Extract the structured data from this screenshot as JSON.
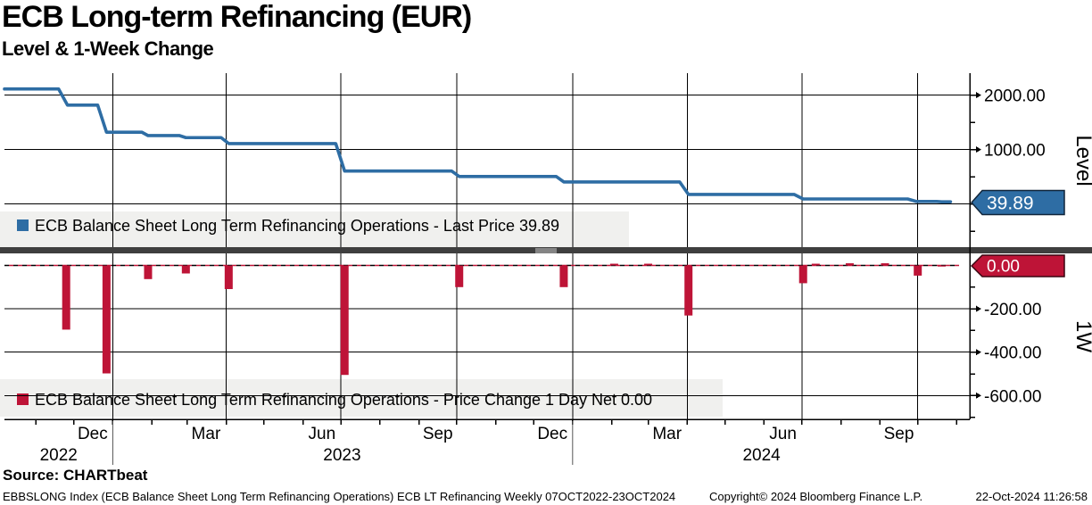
{
  "window": {
    "title": "ECB Long-term Refinancing (EUR)",
    "subtitle": "Level & 1-Week Change"
  },
  "source_label": "Source: CHARTbeat",
  "footer": {
    "left": "EBBSLONG Index (ECB Balance Sheet Long Term Refinancing Operations) ECB LT Refinancing  Weekly 07OCT2022-23OCT2024",
    "center": "Copyright© 2024 Bloomberg Finance L.P.",
    "right": "22-Oct-2024 11:26:58"
  },
  "colors": {
    "level_line": "#2e6da4",
    "level_tag_bg": "#2e6da4",
    "change_bar": "#be1437",
    "change_tag_bg": "#be1437",
    "grid": "#000000",
    "legend_bg": "#f0f0ee",
    "divider": "#3f3f3f"
  },
  "chart_data": [
    {
      "type": "line",
      "panel": "top",
      "series_name": "ECB Balance Sheet Long Term Refinancing Operations",
      "legend": "ECB Balance Sheet Long Term Refinancing Operations - Last Price 39.89",
      "axis_label": "Level",
      "last_value": 39.89,
      "last_value_label": "39.89",
      "ylim": [
        -790,
        2400
      ],
      "y_ticks": [
        {
          "value": 2000,
          "label": "2000.00"
        },
        {
          "value": 1000,
          "label": "1000.00"
        }
      ],
      "y_minor_ticks": [
        1500,
        500,
        0,
        -500
      ],
      "points": [
        [
          0,
          2113
        ],
        [
          43,
          2113
        ],
        [
          50,
          1817
        ],
        [
          74,
          1817
        ],
        [
          81,
          1319
        ],
        [
          109,
          1319
        ],
        [
          114,
          1256
        ],
        [
          139,
          1256
        ],
        [
          144,
          1219
        ],
        [
          172,
          1219
        ],
        [
          178,
          1110
        ],
        [
          263,
          1110
        ],
        [
          270,
          605
        ],
        [
          355,
          605
        ],
        [
          361,
          505
        ],
        [
          438,
          505
        ],
        [
          444,
          405
        ],
        [
          536,
          405
        ],
        [
          543,
          174
        ],
        [
          627,
          174
        ],
        [
          634,
          92
        ],
        [
          717,
          92
        ],
        [
          724,
          45
        ],
        [
          740,
          45
        ],
        [
          744,
          39.89
        ],
        [
          751,
          39.89
        ]
      ]
    },
    {
      "type": "bar",
      "panel": "bottom",
      "series_name": "ECB Balance Sheet Long Term Refinancing Operations",
      "legend": "ECB Balance Sheet Long Term Refinancing Operations - Price Change 1 Day Net 0.00",
      "axis_label": "1W",
      "last_value": 0.0,
      "last_value_label": "0.00",
      "ylim": [
        -710,
        60
      ],
      "baseline": 0,
      "zero_line_style": "dashed-black-red",
      "y_ticks": [
        {
          "value": -200,
          "label": "-200.00"
        },
        {
          "value": -400,
          "label": "-400.00"
        },
        {
          "value": -600,
          "label": "-600.00"
        }
      ],
      "y_minor_ticks": [
        -100,
        -300,
        -500,
        -700
      ],
      "bars": [
        [
          49,
          -296
        ],
        [
          81,
          -498
        ],
        [
          114,
          -63
        ],
        [
          144,
          -37
        ],
        [
          178,
          -109
        ],
        [
          270,
          -505
        ],
        [
          361,
          -100
        ],
        [
          444,
          -100
        ],
        [
          484,
          8
        ],
        [
          511,
          8
        ],
        [
          543,
          -231
        ],
        [
          634,
          -82
        ],
        [
          644,
          8
        ],
        [
          671,
          10
        ],
        [
          699,
          10
        ],
        [
          725,
          -47
        ],
        [
          744,
          -5.11
        ]
      ]
    }
  ],
  "x_axis": {
    "start": "07OCT2022",
    "end": "23OCT2024",
    "frequency": "Weekly",
    "span_days": 751,
    "quarter_grid_days": [
      86,
      176,
      267,
      359,
      451,
      542,
      633,
      725
    ],
    "month_tick_days": [
      25,
      55,
      86,
      117,
      145,
      176,
      206,
      237,
      267,
      298,
      329,
      359,
      390,
      420,
      451,
      482,
      511,
      542,
      572,
      603,
      633,
      664,
      695,
      725,
      756
    ],
    "month_labels": [
      {
        "label": "Dec",
        "day": 70
      },
      {
        "label": "Mar",
        "day": 160
      },
      {
        "label": "Jun",
        "day": 252
      },
      {
        "label": "Sep",
        "day": 344
      },
      {
        "label": "Dec",
        "day": 435
      },
      {
        "label": "Mar",
        "day": 526
      },
      {
        "label": "Jun",
        "day": 618
      },
      {
        "label": "Sep",
        "day": 710
      }
    ],
    "year_labels": [
      {
        "label": "2022",
        "day": 43
      },
      {
        "label": "2023",
        "day": 268
      },
      {
        "label": "2024",
        "day": 601
      }
    ],
    "year_divider_days": [
      86,
      451
    ]
  }
}
